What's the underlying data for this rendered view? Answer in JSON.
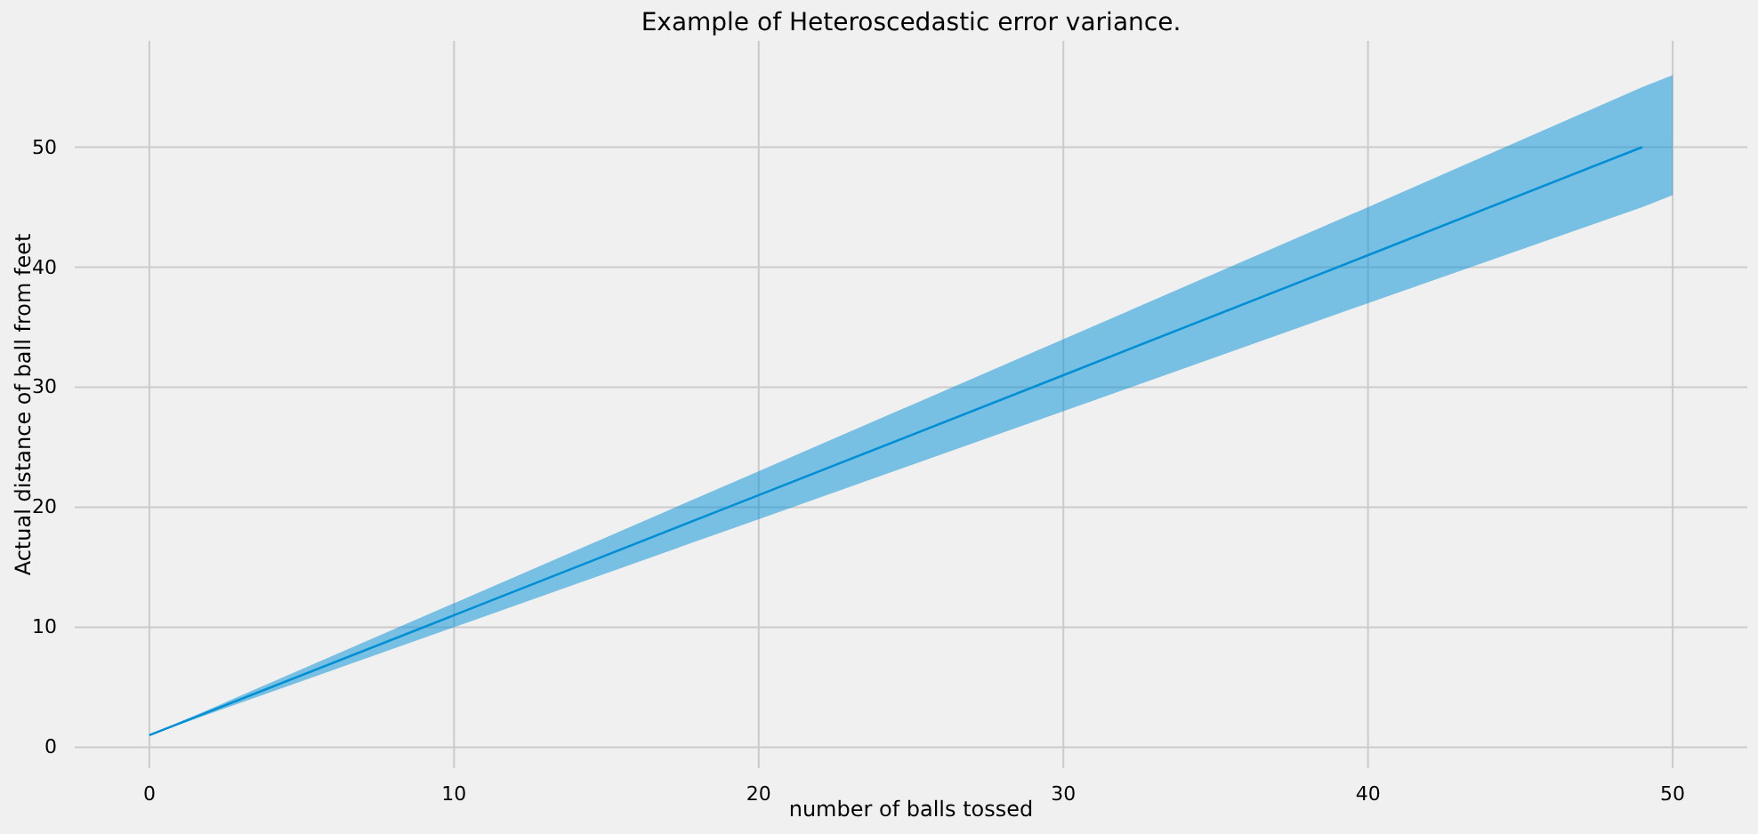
{
  "chart_data": {
    "type": "line",
    "title": "Example of Heteroscedastic error variance.",
    "xlabel": "number of balls tossed",
    "ylabel": "Actual distance of ball from feet",
    "xlim": [
      -2.45,
      52.45
    ],
    "ylim": [
      -1.75,
      58.85
    ],
    "xticks": [
      0,
      10,
      20,
      30,
      40,
      50
    ],
    "yticks": [
      0,
      10,
      20,
      30,
      40,
      50
    ],
    "grid": true,
    "series": [
      {
        "color": "#008fd5",
        "x": [
          0,
          10,
          20,
          30,
          40,
          49,
          50
        ],
        "values": [
          1,
          11,
          21,
          31,
          41,
          50,
          null
        ],
        "lower": [
          1,
          10,
          19,
          28,
          37,
          45,
          46
        ],
        "upper": [
          1,
          12,
          23,
          34,
          45,
          55,
          56
        ]
      }
    ]
  }
}
